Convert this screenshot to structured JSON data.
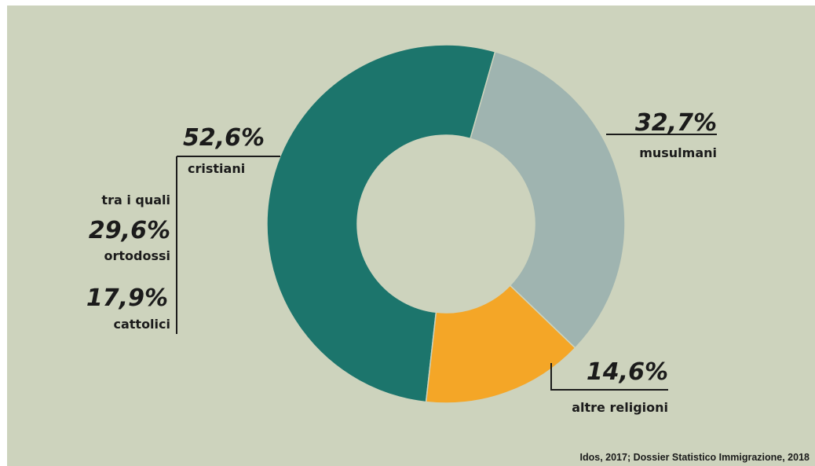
{
  "chart_data": {
    "type": "pie",
    "variant": "donut",
    "slices": [
      {
        "label": "cristiani",
        "value": 52.6,
        "display": "52,6%",
        "color": "#1c756c"
      },
      {
        "label": "musulmani",
        "value": 32.7,
        "display": "32,7%",
        "color": "#9fb4b0"
      },
      {
        "label": "altre religioni",
        "value": 14.6,
        "display": "14,6%",
        "color": "#f4a627"
      }
    ],
    "sub_breakdown": {
      "intro": "tra i quali",
      "items": [
        {
          "label": "ortodossi",
          "value": 29.6,
          "display": "29,6%"
        },
        {
          "label": "cattolici",
          "value": 17.9,
          "display": "17,9%"
        }
      ]
    },
    "source": "Idos, 2017; Dossier Statistico Immigrazione, 2018"
  },
  "colors": {
    "background": "#cdd3bd",
    "rules": "#1b1b1b"
  }
}
